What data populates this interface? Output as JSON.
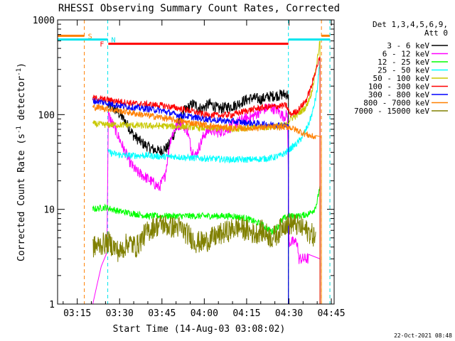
{
  "chart_data": {
    "type": "line",
    "title": "RHESSI Observing Summary Count Rates, Corrected",
    "xlabel": "Start Time (14-Aug-03 03:08:02)",
    "ylabel": "Corrected Count Rate (s",
    "ylabel_sup1": "-1",
    "ylabel_mid": " detector",
    "ylabel_sup2": "-1",
    "ylabel_end": ")",
    "y_scale": "log",
    "ylim": [
      1,
      1000
    ],
    "xlim_min": [
      8.03,
      106
    ],
    "x_ticks": [
      {
        "min": 15,
        "label": "03:15"
      },
      {
        "min": 30,
        "label": "03:30"
      },
      {
        "min": 45,
        "label": "03:45"
      },
      {
        "min": 60,
        "label": "04:00"
      },
      {
        "min": 75,
        "label": "04:15"
      },
      {
        "min": 90,
        "label": "04:30"
      },
      {
        "min": 105,
        "label": "04:45"
      }
    ],
    "y_ticks": [
      {
        "value": 1,
        "label": "1"
      },
      {
        "value": 10,
        "label": "10"
      },
      {
        "value": 100,
        "label": "100"
      },
      {
        "value": 1000,
        "label": "1000"
      }
    ],
    "legend_header": [
      "Det 1,3,4,5,6,9,",
      "Att 0"
    ],
    "legend_position": "right",
    "footer_date": "22-Oct-2021 08:48",
    "flags": [
      {
        "label": "S",
        "color": "#ff8000",
        "value": 680,
        "segments": [
          [
            8.03,
            17.5
          ],
          [
            101.5,
            104.5
          ]
        ],
        "vlines": [
          17.5,
          101.5,
          104.5
        ]
      },
      {
        "label": "N",
        "color": "#00e5ee",
        "value": 620,
        "segments": [
          [
            8.03,
            25.8
          ],
          [
            89.8,
            104.5
          ]
        ],
        "vlines": [
          25.8,
          89.8,
          104.5
        ]
      },
      {
        "label": "F",
        "color": "#ff0000",
        "value": 560,
        "segments": [
          [
            26.0,
            89.8
          ]
        ],
        "vlines": []
      }
    ],
    "series": [
      {
        "name": "3 - 6 keV",
        "color": "#000000",
        "points": [
          [
            26,
            125
          ],
          [
            29,
            110
          ],
          [
            32,
            85
          ],
          [
            35,
            60
          ],
          [
            38,
            50
          ],
          [
            41,
            44
          ],
          [
            44,
            41
          ],
          [
            47,
            45
          ],
          [
            50,
            70
          ],
          [
            53,
            110
          ],
          [
            56,
            130
          ],
          [
            59,
            115
          ],
          [
            62,
            130
          ],
          [
            65,
            115
          ],
          [
            68,
            120
          ],
          [
            71,
            125
          ],
          [
            74,
            140
          ],
          [
            77,
            150
          ],
          [
            80,
            145
          ],
          [
            83,
            155
          ],
          [
            86,
            160
          ],
          [
            89,
            165
          ],
          [
            89.8,
            160
          ]
        ],
        "end": [
          89.8,
          1
        ]
      },
      {
        "name": "6 - 12 keV",
        "color": "#ff00ff",
        "points": [
          [
            26,
            100
          ],
          [
            28,
            75
          ],
          [
            30,
            55
          ],
          [
            32,
            40
          ],
          [
            34,
            30
          ],
          [
            36,
            25
          ],
          [
            38,
            23
          ],
          [
            40,
            21
          ],
          [
            42,
            19
          ],
          [
            44,
            17
          ],
          [
            46,
            22
          ],
          [
            48,
            55
          ],
          [
            50,
            75
          ],
          [
            52,
            80
          ],
          [
            54,
            68
          ],
          [
            55.5,
            42
          ],
          [
            57,
            37
          ],
          [
            58.5,
            48
          ],
          [
            60,
            62
          ],
          [
            62,
            70
          ],
          [
            65,
            65
          ],
          [
            68,
            70
          ],
          [
            71,
            80
          ],
          [
            74,
            90
          ],
          [
            77,
            95
          ],
          [
            80,
            110
          ],
          [
            83,
            120
          ],
          [
            86,
            112
          ],
          [
            88,
            95
          ],
          [
            89.5,
            100
          ],
          [
            90,
            4.5
          ],
          [
            93,
            4.5
          ],
          [
            93.4,
            3
          ],
          [
            96,
            3
          ],
          [
            97,
            3
          ]
        ],
        "pre": [
          [
            20.5,
            1
          ],
          [
            22,
            1.6
          ],
          [
            23.5,
            2.5
          ],
          [
            25.5,
            3.5
          ]
        ],
        "end": [
          101,
          1
        ]
      },
      {
        "name": "12 - 25 keV",
        "color": "#00ff00",
        "points": [
          [
            20.5,
            10
          ],
          [
            25,
            10.5
          ],
          [
            30,
            9.5
          ],
          [
            35,
            9
          ],
          [
            40,
            8.5
          ],
          [
            45,
            8.5
          ],
          [
            50,
            8.5
          ],
          [
            55,
            8.5
          ],
          [
            60,
            8.5
          ],
          [
            65,
            8.5
          ],
          [
            70,
            8.5
          ],
          [
            75,
            8
          ],
          [
            80,
            7
          ],
          [
            84,
            5.8
          ],
          [
            86,
            6.5
          ],
          [
            88,
            8
          ],
          [
            90,
            8.5
          ],
          [
            94,
            8.5
          ],
          [
            97,
            9
          ],
          [
            99,
            10
          ],
          [
            100,
            12
          ],
          [
            101,
            18
          ]
        ],
        "end": [
          101,
          1
        ]
      },
      {
        "name": "25 - 50 keV",
        "color": "#00ffff",
        "points": [
          [
            26,
            40
          ],
          [
            29,
            38
          ],
          [
            32,
            37
          ],
          [
            35,
            37
          ],
          [
            40,
            37
          ],
          [
            45,
            36
          ],
          [
            50,
            36
          ],
          [
            55,
            35
          ],
          [
            60,
            34.5
          ],
          [
            65,
            34
          ],
          [
            70,
            33.5
          ],
          [
            75,
            33.5
          ],
          [
            80,
            34
          ],
          [
            84,
            35
          ],
          [
            87,
            37
          ],
          [
            89,
            40
          ],
          [
            91,
            45
          ],
          [
            93,
            50
          ],
          [
            95,
            60
          ],
          [
            97,
            80
          ],
          [
            98.5,
            110
          ],
          [
            100,
            180
          ],
          [
            101,
            400
          ]
        ],
        "end": [
          101,
          1
        ]
      },
      {
        "name": "50 - 100 keV",
        "color": "#c8c800",
        "points": [
          [
            20.5,
            80
          ],
          [
            25,
            78
          ],
          [
            30,
            78
          ],
          [
            35,
            77
          ],
          [
            40,
            76
          ],
          [
            45,
            76
          ],
          [
            50,
            75
          ],
          [
            55,
            74
          ],
          [
            60,
            72
          ],
          [
            65,
            71
          ],
          [
            70,
            71
          ],
          [
            75,
            72
          ],
          [
            80,
            73
          ],
          [
            85,
            75
          ],
          [
            89,
            78
          ],
          [
            90.5,
            90
          ],
          [
            93,
            100
          ],
          [
            96,
            120
          ],
          [
            98,
            170
          ],
          [
            99.5,
            300
          ],
          [
            101,
            600
          ]
        ],
        "end": [
          101,
          1
        ]
      },
      {
        "name": "100 - 300 keV",
        "color": "#ff0000",
        "points": [
          [
            20.5,
            150
          ],
          [
            24,
            145
          ],
          [
            28,
            140
          ],
          [
            32,
            135
          ],
          [
            36,
            130
          ],
          [
            40,
            128
          ],
          [
            45,
            125
          ],
          [
            50,
            118
          ],
          [
            55,
            110
          ],
          [
            60,
            100
          ],
          [
            65,
            98
          ],
          [
            70,
            100
          ],
          [
            75,
            110
          ],
          [
            80,
            118
          ],
          [
            85,
            122
          ],
          [
            89,
            125
          ],
          [
            90.5,
            100
          ],
          [
            93,
            110
          ],
          [
            96,
            140
          ],
          [
            98,
            200
          ],
          [
            99.5,
            300
          ],
          [
            101,
            400
          ]
        ],
        "end": [
          101,
          1
        ]
      },
      {
        "name": "300 - 800 keV",
        "color": "#0000ff",
        "points": [
          [
            20.5,
            140
          ],
          [
            24,
            135
          ],
          [
            28,
            128
          ],
          [
            32,
            122
          ],
          [
            36,
            118
          ],
          [
            40,
            115
          ],
          [
            45,
            110
          ],
          [
            50,
            100
          ],
          [
            55,
            95
          ],
          [
            60,
            90
          ],
          [
            65,
            87
          ],
          [
            70,
            85
          ],
          [
            75,
            82
          ],
          [
            80,
            80
          ],
          [
            85,
            78
          ],
          [
            89.5,
            76
          ]
        ],
        "end": [
          89.8,
          1
        ]
      },
      {
        "name": "800 - 7000 keV",
        "color": "#ff8000",
        "points": [
          [
            20.5,
            120
          ],
          [
            24,
            118
          ],
          [
            28,
            112
          ],
          [
            32,
            107
          ],
          [
            36,
            102
          ],
          [
            40,
            98
          ],
          [
            45,
            93
          ],
          [
            50,
            87
          ],
          [
            55,
            82
          ],
          [
            60,
            78
          ],
          [
            65,
            74
          ],
          [
            70,
            72
          ],
          [
            75,
            72
          ],
          [
            80,
            73
          ],
          [
            85,
            74
          ],
          [
            90,
            74
          ],
          [
            92,
            70
          ],
          [
            94,
            66
          ],
          [
            96,
            62
          ],
          [
            98,
            59
          ],
          [
            99.5,
            58
          ]
        ],
        "end": [
          101.5,
          1
        ]
      },
      {
        "name": "7000 - 15000 keV",
        "color": "#808000",
        "points": [
          [
            20.5,
            4
          ],
          [
            23,
            4.2
          ],
          [
            26,
            4.5
          ],
          [
            28,
            4
          ],
          [
            30,
            3.5
          ],
          [
            33,
            4.5
          ],
          [
            36,
            4
          ],
          [
            39,
            5.5
          ],
          [
            42,
            6.5
          ],
          [
            45,
            7
          ],
          [
            48,
            6.5
          ],
          [
            51,
            6.5
          ],
          [
            54,
            5.5
          ],
          [
            57,
            4.5
          ],
          [
            60,
            4.5
          ],
          [
            63,
            5
          ],
          [
            66,
            5.5
          ],
          [
            69,
            6
          ],
          [
            72,
            6.5
          ],
          [
            75,
            6
          ],
          [
            78,
            5.5
          ],
          [
            80,
            6
          ],
          [
            82,
            5.5
          ],
          [
            84,
            5
          ],
          [
            86,
            5.5
          ],
          [
            88,
            7
          ],
          [
            90,
            7
          ],
          [
            92,
            7
          ],
          [
            94,
            6.5
          ],
          [
            96,
            6
          ],
          [
            98,
            5.5
          ],
          [
            99.5,
            5
          ]
        ]
      }
    ]
  }
}
